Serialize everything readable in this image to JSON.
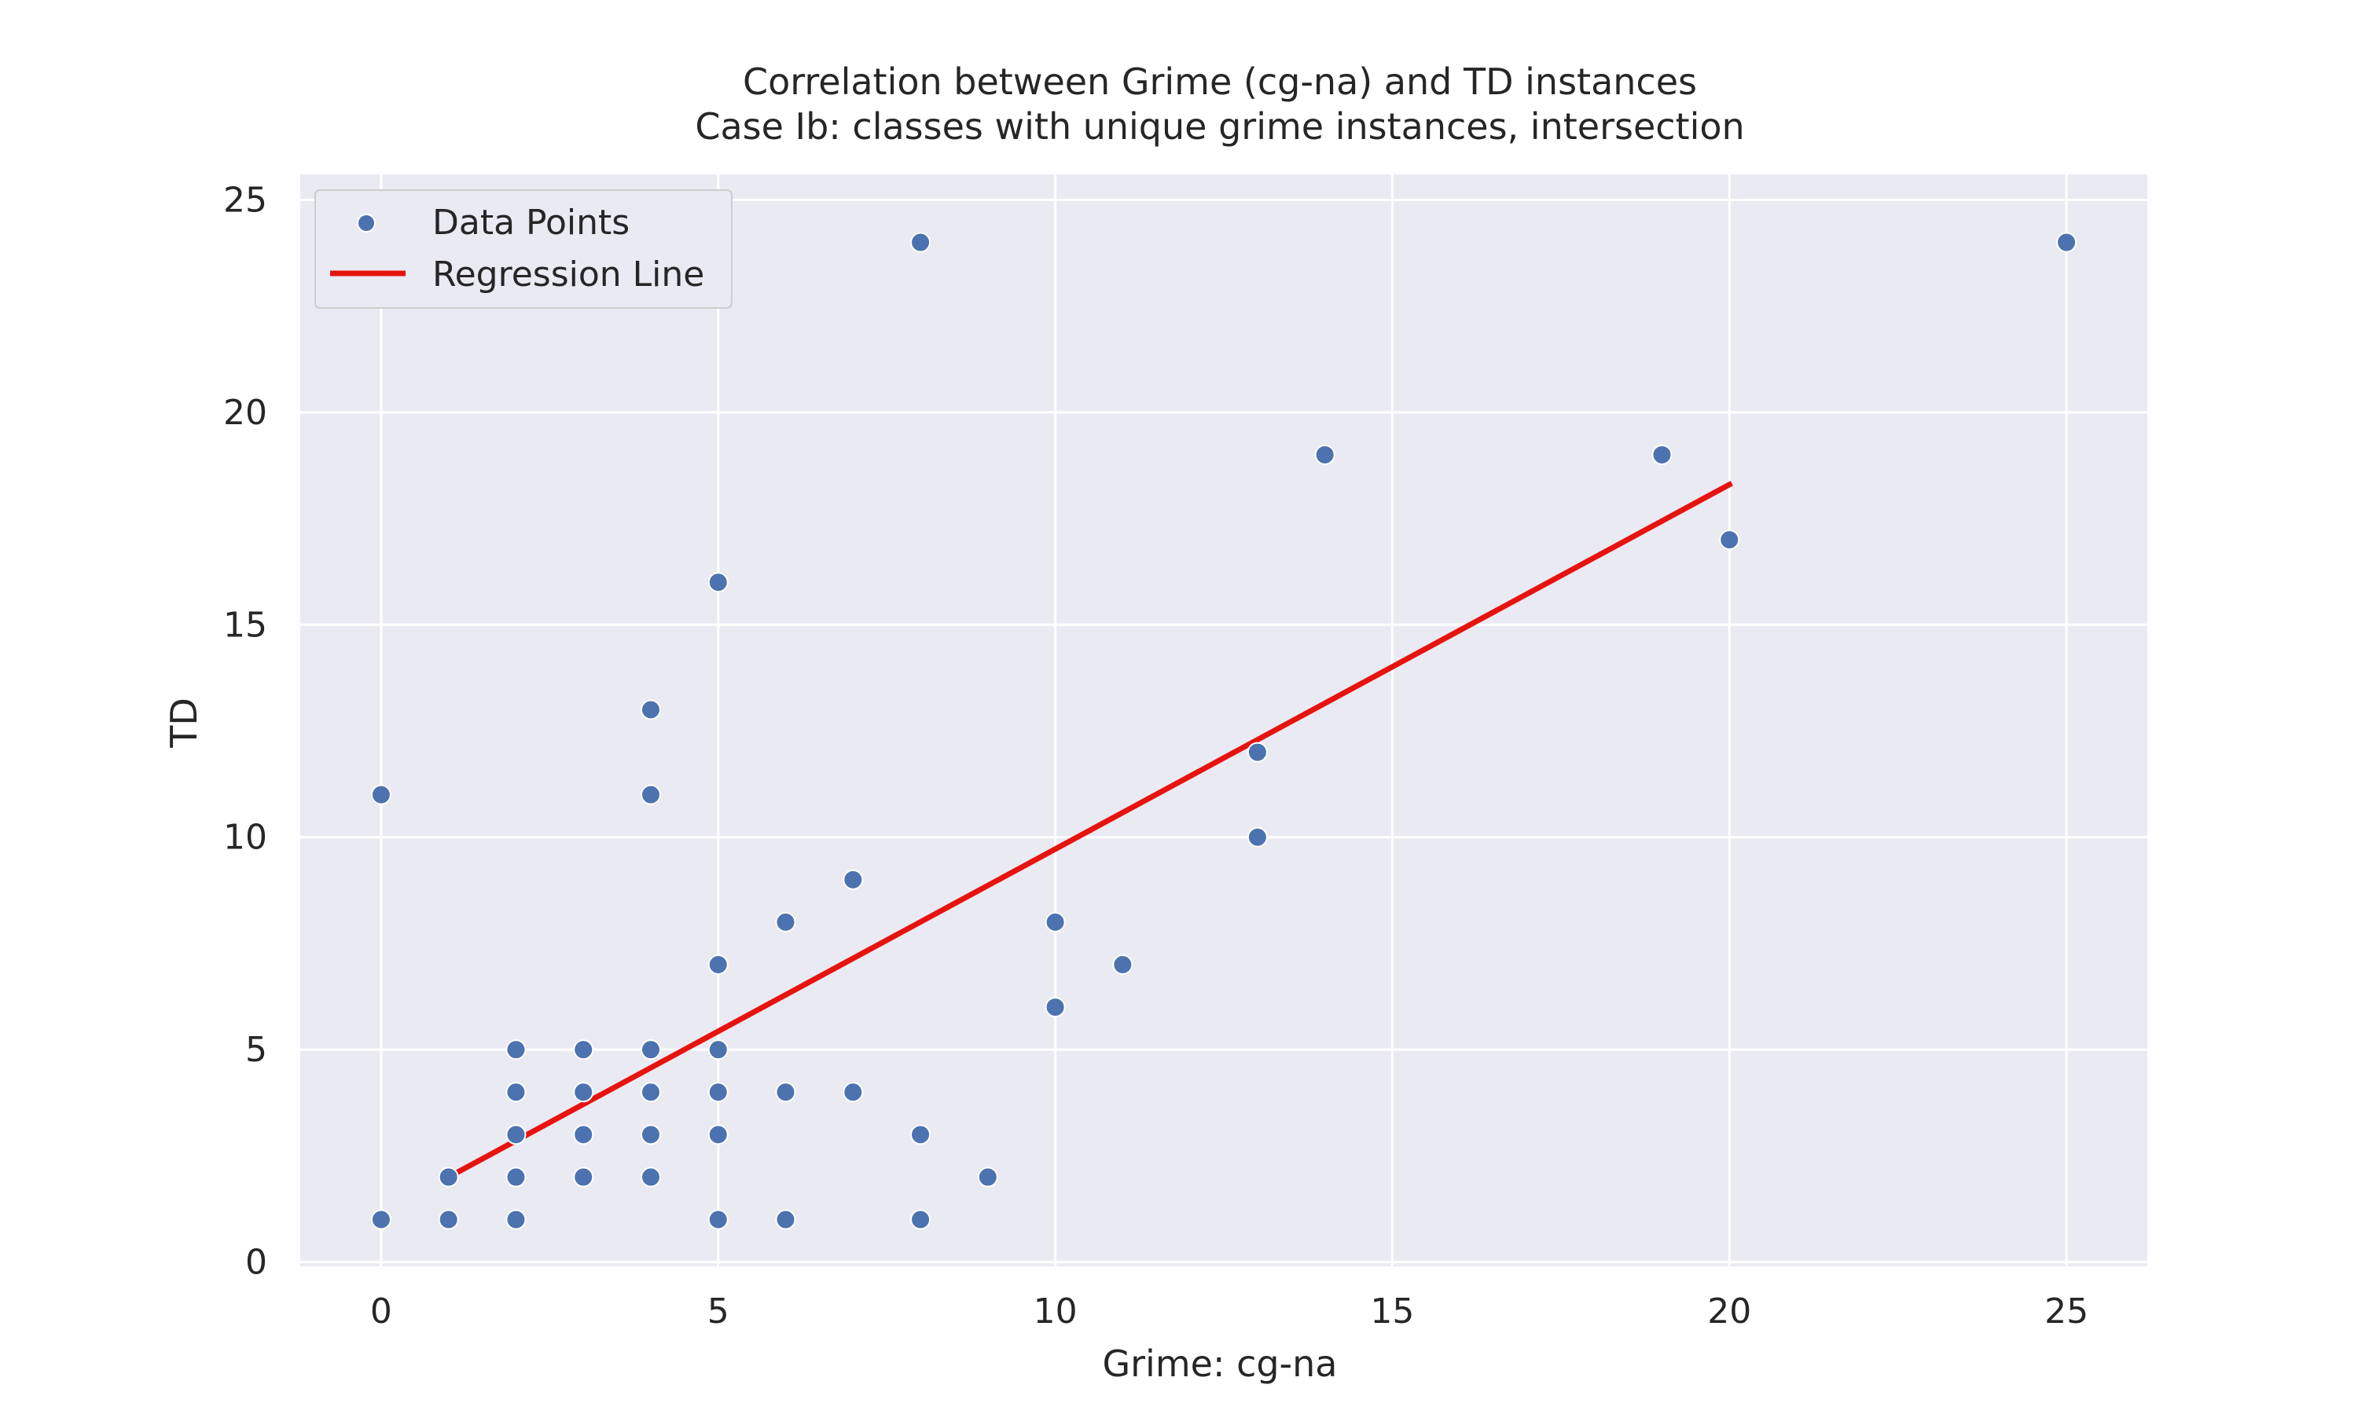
{
  "chart_data": {
    "type": "scatter",
    "title": "Correlation between Grime (cg-na) and TD instances",
    "subtitle": "Case Ib: classes with unique grime instances, intersection",
    "xlabel": "Grime: cg-na",
    "ylabel": "TD",
    "xlim": [
      -1.2,
      26.2
    ],
    "ylim": [
      -0.1,
      25.6
    ],
    "xticks": [
      0,
      5,
      10,
      15,
      20,
      25
    ],
    "yticks": [
      0,
      5,
      10,
      15,
      20,
      25
    ],
    "grid": true,
    "legend_position": "top-left",
    "legend": [
      "Data Points",
      "Regression Line"
    ],
    "colors": {
      "points": "#4c72b0",
      "line": "#e6130f",
      "background": "#eaeaf2",
      "grid": "#ffffff"
    },
    "series": [
      {
        "name": "Data Points",
        "kind": "scatter",
        "points": [
          [
            0,
            1
          ],
          [
            0,
            11
          ],
          [
            1,
            1
          ],
          [
            1,
            2
          ],
          [
            2,
            1
          ],
          [
            2,
            2
          ],
          [
            2,
            3
          ],
          [
            2,
            4
          ],
          [
            2,
            5
          ],
          [
            3,
            2
          ],
          [
            3,
            3
          ],
          [
            3,
            4
          ],
          [
            3,
            5
          ],
          [
            4,
            2
          ],
          [
            4,
            3
          ],
          [
            4,
            4
          ],
          [
            4,
            5
          ],
          [
            4,
            11
          ],
          [
            4,
            13
          ],
          [
            5,
            1
          ],
          [
            5,
            3
          ],
          [
            5,
            4
          ],
          [
            5,
            5
          ],
          [
            5,
            7
          ],
          [
            5,
            16
          ],
          [
            6,
            1
          ],
          [
            6,
            4
          ],
          [
            6,
            8
          ],
          [
            7,
            4
          ],
          [
            7,
            9
          ],
          [
            8,
            1
          ],
          [
            8,
            3
          ],
          [
            8,
            24
          ],
          [
            9,
            2
          ],
          [
            10,
            6
          ],
          [
            10,
            8
          ],
          [
            11,
            7
          ],
          [
            13,
            10
          ],
          [
            13,
            12
          ],
          [
            14,
            19
          ],
          [
            19,
            19
          ],
          [
            20,
            17
          ],
          [
            25,
            24
          ]
        ]
      },
      {
        "name": "Regression Line",
        "kind": "line",
        "points": [
          [
            1,
            2.0
          ],
          [
            20,
            18.3
          ]
        ]
      }
    ]
  }
}
